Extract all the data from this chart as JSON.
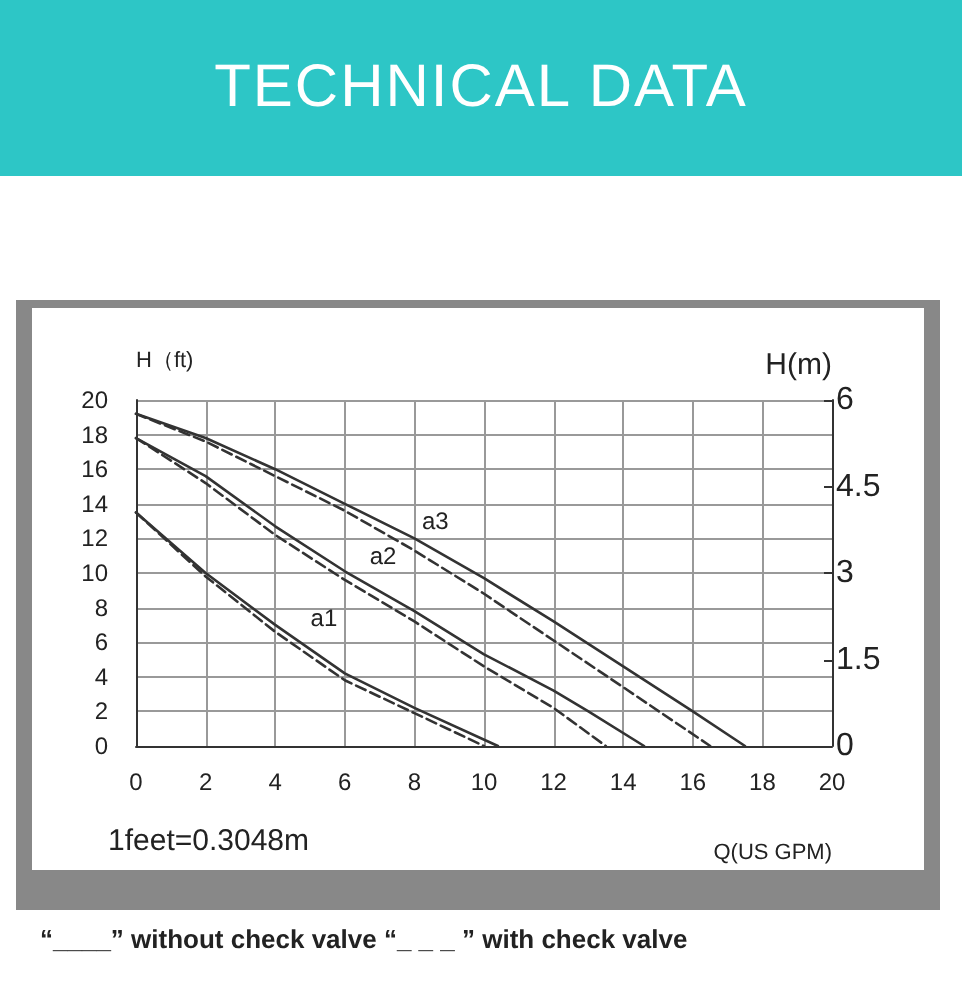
{
  "chart_data": {
    "type": "line",
    "title": "TECHNICAL DATA",
    "xlabel": "Q(US GPM)",
    "ylabel": "H（ft)",
    "y2label": "H(m)",
    "xlim": [
      0,
      20
    ],
    "xticks": [
      0,
      2,
      4,
      6,
      8,
      10,
      12,
      14,
      16,
      18,
      20
    ],
    "ylim": [
      0,
      20
    ],
    "yticks": [
      0,
      2,
      4,
      6,
      8,
      10,
      12,
      14,
      16,
      18,
      20
    ],
    "y2lim": [
      0,
      6
    ],
    "y2ticks": [
      0,
      1.5,
      3,
      4.5,
      6
    ],
    "grid": true,
    "marker": "none",
    "series": [
      {
        "color": "#333333",
        "line_style": "solid",
        "x": [
          0,
          2,
          4,
          6,
          8,
          10.4
        ],
        "values": [
          13.5,
          10,
          7,
          4.2,
          2.2,
          0
        ]
      },
      {
        "color": "#333333",
        "line_style": "dashed",
        "x": [
          0,
          2,
          4,
          6,
          8,
          10
        ],
        "values": [
          13.5,
          9.8,
          6.6,
          3.8,
          1.9,
          0
        ]
      },
      {
        "color": "#333333",
        "line_style": "solid",
        "x": [
          0,
          2,
          4,
          6,
          8,
          10,
          12,
          13,
          14.6
        ],
        "values": [
          17.8,
          15.6,
          12.7,
          10.1,
          7.8,
          5.3,
          3.2,
          2,
          0
        ]
      },
      {
        "color": "#333333",
        "line_style": "dashed",
        "x": [
          0,
          2,
          4,
          6,
          8,
          10,
          12,
          13.5
        ],
        "values": [
          17.8,
          15.2,
          12.2,
          9.6,
          7.2,
          4.6,
          2.2,
          0
        ]
      },
      {
        "color": "#333333",
        "line_style": "solid",
        "x": [
          0,
          2,
          4,
          6,
          8,
          10,
          12,
          14,
          16,
          17.5
        ],
        "values": [
          19.2,
          17.8,
          16,
          14,
          12,
          9.7,
          7.2,
          4.6,
          2,
          0
        ]
      },
      {
        "color": "#333333",
        "line_style": "dashed",
        "x": [
          0,
          2,
          4,
          6,
          8,
          10,
          12,
          14,
          16.5
        ],
        "values": [
          19.2,
          17.6,
          15.6,
          13.6,
          11.3,
          8.8,
          6.1,
          3.4,
          0
        ]
      }
    ],
    "annotations": [
      "1feet=0.3048m",
      "“____” without check valve “_ _ _ ” with check valve",
      "a1",
      "a2",
      "a3"
    ]
  }
}
